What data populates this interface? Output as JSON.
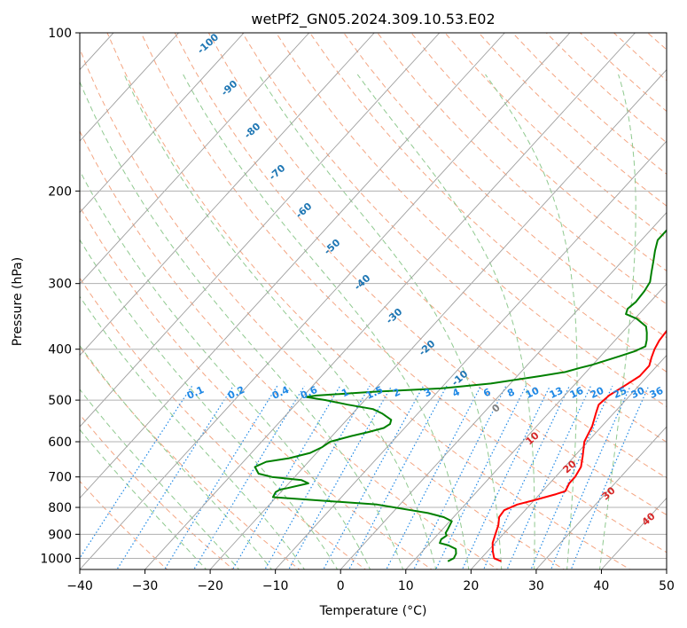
{
  "chart_data": {
    "type": "line",
    "title": "wetPf2_GN05.2024.309.10.53.E02",
    "xlabel": "Temperature (°C)",
    "ylabel": "Pressure (hPa)",
    "xlim": [
      -40,
      50
    ],
    "ylim": [
      1050,
      100
    ],
    "y_scale": "log",
    "grid": true,
    "x_ticks": [
      -40,
      -30,
      -20,
      -10,
      0,
      10,
      20,
      30,
      40,
      50
    ],
    "y_ticks": [
      100,
      200,
      300,
      400,
      500,
      600,
      700,
      800,
      900,
      1000
    ],
    "series": [
      {
        "color": "#ff0000",
        "points": [
          [
            23.5,
            1013
          ],
          [
            22,
            1000
          ],
          [
            20.8,
            970
          ],
          [
            19.6,
            935
          ],
          [
            18.8,
            900
          ],
          [
            18,
            865
          ],
          [
            17,
            835
          ],
          [
            16.8,
            810
          ],
          [
            18,
            790
          ],
          [
            20,
            775
          ],
          [
            22.5,
            755
          ],
          [
            23.5,
            745
          ],
          [
            23,
            720
          ],
          [
            23,
            700
          ],
          [
            22.5,
            670
          ],
          [
            21.3,
            640
          ],
          [
            19.5,
            600
          ],
          [
            18.5,
            560
          ],
          [
            17.3,
            530
          ],
          [
            16.5,
            510
          ],
          [
            16.8,
            490
          ],
          [
            17.8,
            470
          ],
          [
            18.8,
            450
          ],
          [
            18.8,
            430
          ],
          [
            18,
            415
          ],
          [
            17.3,
            400
          ],
          [
            16.8,
            385
          ],
          [
            16.6,
            370
          ],
          [
            16.4,
            360
          ],
          [
            15.5,
            345
          ],
          [
            14.5,
            330
          ],
          [
            13.5,
            315
          ],
          [
            12,
            300
          ],
          [
            10.5,
            285
          ],
          [
            9.2,
            270
          ],
          [
            8.2,
            258
          ],
          [
            7.2,
            245
          ],
          [
            6.2,
            232
          ],
          [
            5.5,
            222
          ],
          [
            4.5,
            210
          ],
          [
            3.8,
            200
          ],
          [
            3,
            190
          ],
          [
            2.3,
            182
          ],
          [
            1.5,
            175
          ],
          [
            0.3,
            168
          ],
          [
            -0.2,
            160
          ],
          [
            0.8,
            152
          ],
          [
            2,
            147
          ],
          [
            3.5,
            143
          ],
          [
            3.8,
            138
          ],
          [
            3.5,
            133
          ],
          [
            3.2,
            128
          ],
          [
            3.2,
            122
          ],
          [
            3.5,
            115
          ],
          [
            4.5,
            110
          ],
          [
            6,
            105
          ],
          [
            7.5,
            100
          ]
        ]
      },
      {
        "color": "#008000",
        "points": [
          [
            15.3,
            1013
          ],
          [
            15.8,
            1000
          ],
          [
            15.5,
            980
          ],
          [
            14.8,
            960
          ],
          [
            13.2,
            945
          ],
          [
            11.5,
            935
          ],
          [
            11.2,
            920
          ],
          [
            11.5,
            905
          ],
          [
            11,
            895
          ],
          [
            10.8,
            880
          ],
          [
            10.3,
            850
          ],
          [
            8.5,
            835
          ],
          [
            5.5,
            820
          ],
          [
            2.5,
            810
          ],
          [
            -0.5,
            800
          ],
          [
            -3.5,
            790
          ],
          [
            -20.5,
            765
          ],
          [
            -20.8,
            748
          ],
          [
            -20.5,
            740
          ],
          [
            -19.5,
            735
          ],
          [
            -17,
            720
          ],
          [
            -18.5,
            710
          ],
          [
            -21,
            705
          ],
          [
            -23.5,
            700
          ],
          [
            -26,
            690
          ],
          [
            -27.5,
            670
          ],
          [
            -26.5,
            655
          ],
          [
            -23.5,
            645
          ],
          [
            -21,
            630
          ],
          [
            -20,
            615
          ],
          [
            -19.5,
            600
          ],
          [
            -17,
            585
          ],
          [
            -15,
            575
          ],
          [
            -13.2,
            565
          ],
          [
            -12.8,
            555
          ],
          [
            -13.2,
            545
          ],
          [
            -15.5,
            530
          ],
          [
            -17.5,
            520
          ],
          [
            -22,
            510
          ],
          [
            -26,
            500
          ],
          [
            -29.5,
            493
          ],
          [
            -28,
            490
          ],
          [
            -20,
            482
          ],
          [
            -10,
            475
          ],
          [
            -3,
            465
          ],
          [
            0,
            458
          ],
          [
            3.5,
            450
          ],
          [
            6.8,
            442
          ],
          [
            8.5,
            434
          ],
          [
            10,
            428
          ],
          [
            11.5,
            420
          ],
          [
            13,
            412
          ],
          [
            14.5,
            404
          ],
          [
            15.5,
            395
          ],
          [
            14.8,
            384
          ],
          [
            13.8,
            372
          ],
          [
            12.8,
            362
          ],
          [
            10.3,
            350
          ],
          [
            8,
            343
          ],
          [
            7.5,
            335
          ],
          [
            7.8,
            325
          ],
          [
            7.6,
            310
          ],
          [
            7.2,
            298
          ],
          [
            6,
            285
          ],
          [
            4.8,
            272
          ],
          [
            3.6,
            260
          ],
          [
            2.5,
            248
          ],
          [
            2.5,
            238
          ],
          [
            2.4,
            225
          ],
          [
            2.3,
            210
          ],
          [
            1.8,
            200
          ],
          [
            1.5,
            195
          ],
          [
            1,
            188
          ],
          [
            0.2,
            182
          ],
          [
            -1,
            176
          ],
          [
            -2,
            170
          ],
          [
            -3.8,
            164
          ],
          [
            -4.6,
            155
          ],
          [
            -5,
            148
          ],
          [
            -5,
            142
          ],
          [
            -4.6,
            137
          ],
          [
            -4,
            133
          ],
          [
            -3.5,
            128
          ],
          [
            -2.5,
            122
          ],
          [
            -1.8,
            117
          ],
          [
            -1.3,
            112
          ],
          [
            -0.8,
            108
          ],
          [
            0,
            104
          ],
          [
            1,
            100
          ]
        ]
      }
    ],
    "dry_adiabat_labels": [
      "-100",
      "-90",
      "-80",
      "-70",
      "-60",
      "-50",
      "-40",
      "-30",
      "-20",
      "-10",
      "0",
      "10",
      "20",
      "30",
      "40"
    ],
    "mixing_ratio_labels": [
      "0.1",
      "0.2",
      "0.4",
      "0.6",
      "1",
      "1.5",
      "2",
      "3",
      "4",
      "6",
      "8",
      "10",
      "13",
      "16",
      "20",
      "25",
      "30",
      "36"
    ]
  },
  "colors": {
    "temperature": "#ff0000",
    "dewpoint": "#008000",
    "isotherm": "#9e9e9e",
    "dry_adiabat": "#f4a582",
    "moist_adiabat": "#8fc98f",
    "mixing_ratio": "#1e88e5",
    "adiabat_label": "#1f77b4",
    "warm_label": "#d62728",
    "zero_label": "#7f7f7f"
  }
}
